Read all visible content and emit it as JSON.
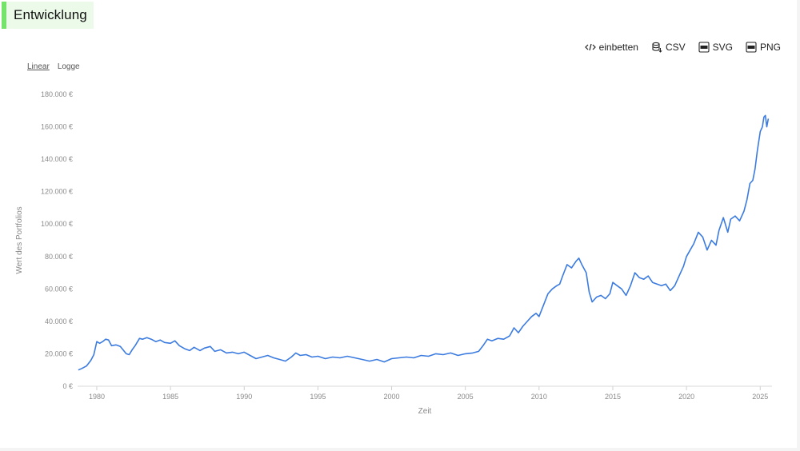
{
  "title": "Entwicklung",
  "actions": {
    "embed": "einbetten",
    "csv": "CSV",
    "svg": "SVG",
    "png": "PNG"
  },
  "scale": {
    "linear": "Linear",
    "log": "Logge"
  },
  "colors": {
    "line": "#3b7be0",
    "accent": "#74e36a"
  },
  "chart_data": {
    "type": "line",
    "xlabel": "Zeit",
    "ylabel": "Wert des Portfolios",
    "xlim": [
      1978.7,
      2025.8
    ],
    "ylim": [
      0,
      180000
    ],
    "y_ticks": [
      0,
      20000,
      40000,
      60000,
      80000,
      100000,
      120000,
      140000,
      160000,
      180000
    ],
    "y_tick_labels": [
      "0 €",
      "20.000 €",
      "40.000 €",
      "60.000 €",
      "80.000 €",
      "100.000 €",
      "120.000 €",
      "140.000 €",
      "160.000 €",
      "180.000 €"
    ],
    "x_ticks": [
      1980,
      1985,
      1990,
      1995,
      2000,
      2005,
      2010,
      2015,
      2020,
      2025
    ],
    "x_tick_labels": [
      "1980",
      "1985",
      "1990",
      "1995",
      "2000",
      "2005",
      "2010",
      "2015",
      "2020",
      "2025"
    ],
    "grid": false,
    "series": [
      {
        "x": [
          1978.75,
          1979.0,
          1979.3,
          1979.6,
          1979.8,
          1980.0,
          1980.2,
          1980.4,
          1980.6,
          1980.8,
          1981.0,
          1981.3,
          1981.6,
          1982.0,
          1982.2,
          1982.4,
          1982.6,
          1982.9,
          1983.1,
          1983.4,
          1983.7,
          1984.0,
          1984.3,
          1984.6,
          1985.0,
          1985.3,
          1985.6,
          1986.0,
          1986.3,
          1986.6,
          1987.0,
          1987.3,
          1987.7,
          1988.0,
          1988.4,
          1988.8,
          1989.2,
          1989.6,
          1990.0,
          1990.4,
          1990.8,
          1991.2,
          1991.6,
          1992.0,
          1992.4,
          1992.8,
          1993.2,
          1993.5,
          1993.8,
          1994.2,
          1994.6,
          1995.0,
          1995.5,
          1996.0,
          1996.5,
          1997.0,
          1997.5,
          1998.0,
          1998.5,
          1999.0,
          1999.5,
          2000.0,
          2000.5,
          2001.0,
          2001.5,
          2002.0,
          2002.5,
          2003.0,
          2003.5,
          2004.0,
          2004.5,
          2005.0,
          2005.5,
          2005.9,
          2006.2,
          2006.5,
          2006.8,
          2007.2,
          2007.6,
          2008.0,
          2008.3,
          2008.6,
          2008.9,
          2009.2,
          2009.5,
          2009.8,
          2010.0,
          2010.3,
          2010.6,
          2010.9,
          2011.2,
          2011.4,
          2011.6,
          2011.9,
          2012.2,
          2012.5,
          2012.7,
          2012.9,
          2013.2,
          2013.4,
          2013.6,
          2013.9,
          2014.2,
          2014.5,
          2014.8,
          2015.0,
          2015.3,
          2015.6,
          2015.9,
          2016.2,
          2016.5,
          2016.8,
          2017.1,
          2017.4,
          2017.7,
          2018.0,
          2018.3,
          2018.6,
          2018.9,
          2019.2,
          2019.5,
          2019.8,
          2020.0,
          2020.25,
          2020.5,
          2020.8,
          2021.1,
          2021.4,
          2021.7,
          2022.0,
          2022.2,
          2022.5,
          2022.8,
          2023.0,
          2023.3,
          2023.6,
          2023.9,
          2024.1,
          2024.3,
          2024.5,
          2024.65,
          2024.8,
          2025.0,
          2025.15,
          2025.25,
          2025.35,
          2025.45,
          2025.55
        ],
        "values": [
          10000,
          11000,
          12500,
          16000,
          19500,
          27500,
          26500,
          27500,
          29000,
          28500,
          25000,
          25500,
          24500,
          20000,
          19500,
          22500,
          25000,
          29500,
          29000,
          30000,
          29000,
          27500,
          28500,
          27000,
          26500,
          28000,
          25000,
          23000,
          22000,
          24000,
          22000,
          23500,
          24500,
          21500,
          22500,
          20500,
          21000,
          20000,
          21000,
          19000,
          17000,
          18000,
          19000,
          17500,
          16500,
          15500,
          18000,
          20500,
          19000,
          19500,
          18000,
          18500,
          17000,
          18000,
          17500,
          18500,
          17500,
          16500,
          15500,
          16500,
          15000,
          17000,
          17500,
          18000,
          17500,
          19000,
          18500,
          20000,
          19500,
          20500,
          19000,
          20000,
          20500,
          21500,
          25000,
          29000,
          28000,
          29500,
          29000,
          31000,
          36000,
          33000,
          37000,
          40000,
          43000,
          45000,
          43000,
          50000,
          57000,
          60000,
          62000,
          63000,
          68000,
          75000,
          73000,
          77000,
          79000,
          75000,
          70000,
          58000,
          52000,
          55000,
          56000,
          54000,
          57000,
          64000,
          62000,
          60000,
          56000,
          62000,
          70000,
          67000,
          66000,
          68000,
          64000,
          63000,
          62000,
          63000,
          59000,
          62000,
          68000,
          74000,
          80000,
          84000,
          88000,
          95000,
          92000,
          84000,
          90000,
          87000,
          96000,
          104000,
          95000,
          103000,
          105000,
          102000,
          108000,
          115000,
          125000,
          127000,
          134000,
          145000,
          157000,
          160000,
          166000,
          167000,
          160000,
          165000
        ]
      }
    ]
  }
}
